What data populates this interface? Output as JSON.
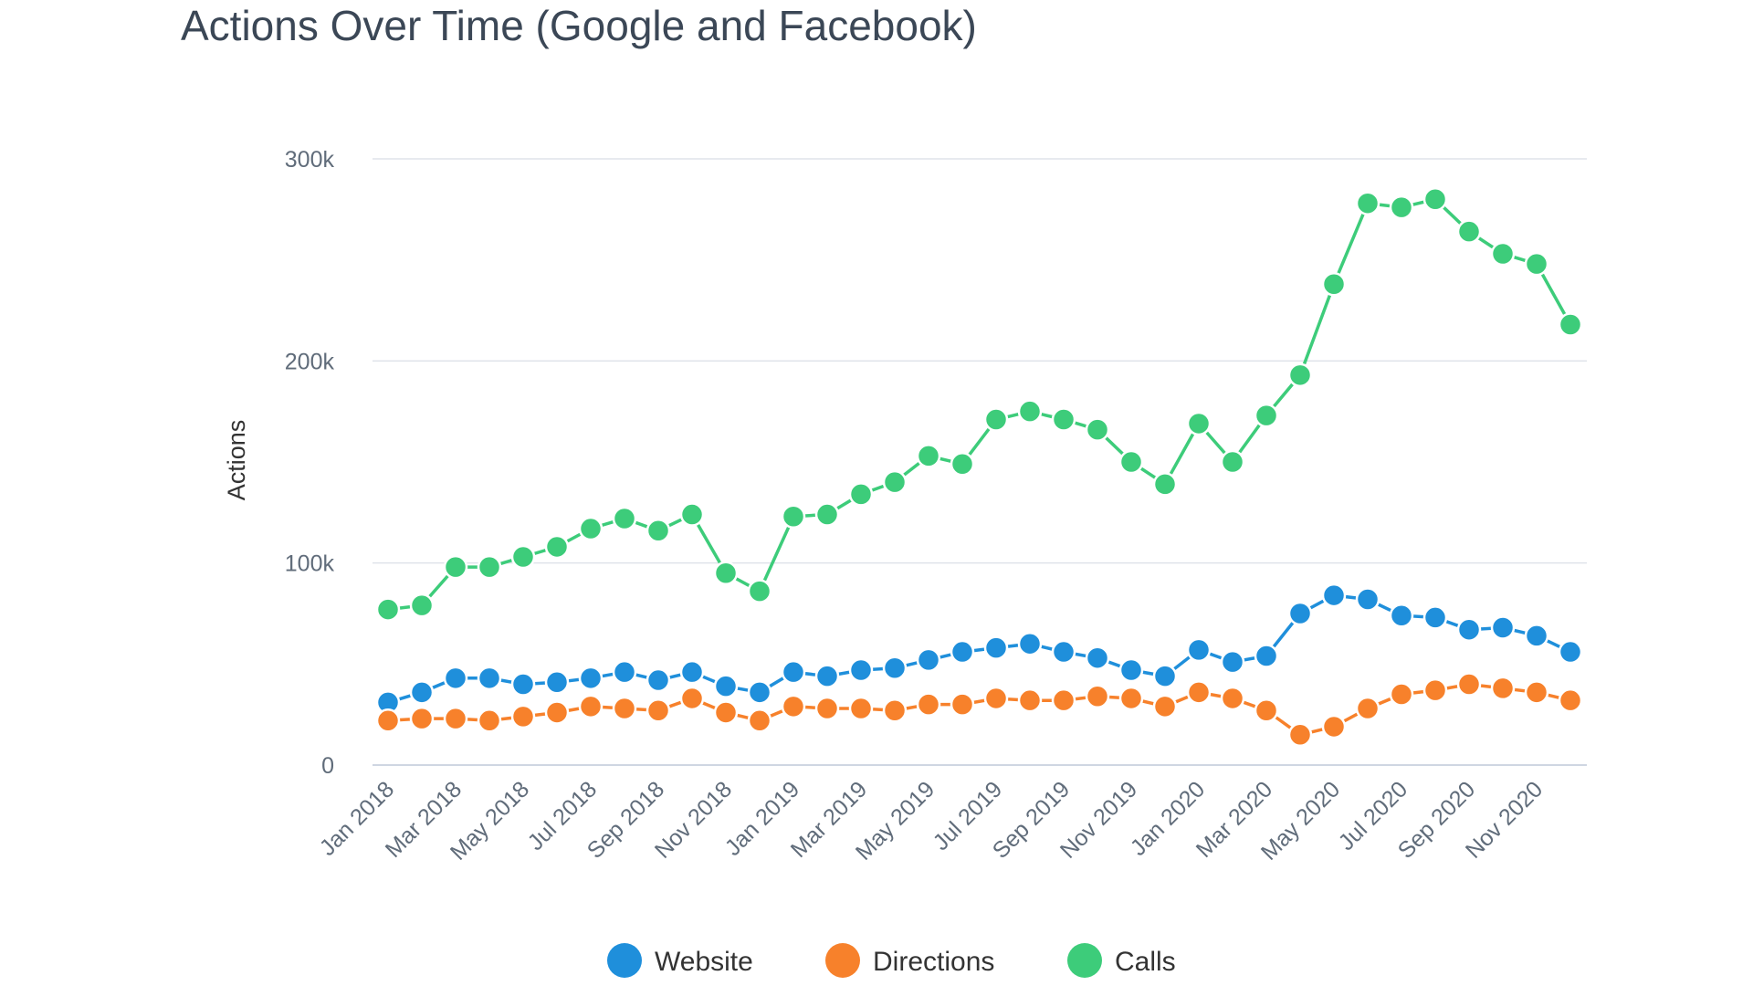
{
  "chart_data": {
    "type": "line",
    "title": "Actions Over Time (Google and Facebook)",
    "xlabel": "",
    "ylabel": "Actions",
    "ylim": [
      0,
      300000
    ],
    "yticks": [
      {
        "value": 0,
        "label": "0"
      },
      {
        "value": 100000,
        "label": "100k"
      },
      {
        "value": 200000,
        "label": "200k"
      },
      {
        "value": 300000,
        "label": "300k"
      }
    ],
    "grid": true,
    "legend_position": "bottom",
    "x": [
      "Jan 2018",
      "Feb 2018",
      "Mar 2018",
      "Apr 2018",
      "May 2018",
      "Jun 2018",
      "Jul 2018",
      "Aug 2018",
      "Sep 2018",
      "Oct 2018",
      "Nov 2018",
      "Dec 2018",
      "Jan 2019",
      "Feb 2019",
      "Mar 2019",
      "Apr 2019",
      "May 2019",
      "Jun 2019",
      "Jul 2019",
      "Aug 2019",
      "Sep 2019",
      "Oct 2019",
      "Nov 2019",
      "Dec 2019",
      "Jan 2020",
      "Feb 2020",
      "Mar 2020",
      "Apr 2020",
      "May 2020",
      "Jun 2020",
      "Jul 2020",
      "Aug 2020",
      "Sep 2020",
      "Oct 2020",
      "Nov 2020",
      "Dec 2020"
    ],
    "x_tick_labels": [
      "Jan 2018",
      "Mar 2018",
      "May 2018",
      "Jul 2018",
      "Sep 2018",
      "Nov 2018",
      "Jan 2019",
      "Mar 2019",
      "May 2019",
      "Jul 2019",
      "Sep 2019",
      "Nov 2019",
      "Jan 2020",
      "Mar 2020",
      "May 2020",
      "Jul 2020",
      "Sep 2020",
      "Nov 2020"
    ],
    "series": [
      {
        "name": "Website",
        "color": "#1f8fdb",
        "values": [
          31000,
          36000,
          43000,
          43000,
          40000,
          41000,
          43000,
          46000,
          42000,
          46000,
          39000,
          36000,
          46000,
          44000,
          47000,
          48000,
          52000,
          56000,
          58000,
          60000,
          56000,
          53000,
          47000,
          44000,
          57000,
          51000,
          54000,
          75000,
          84000,
          82000,
          74000,
          73000,
          67000,
          68000,
          64000,
          56000
        ]
      },
      {
        "name": "Directions",
        "color": "#f7812b",
        "values": [
          22000,
          23000,
          23000,
          22000,
          24000,
          26000,
          29000,
          28000,
          27000,
          33000,
          26000,
          22000,
          29000,
          28000,
          28000,
          27000,
          30000,
          30000,
          33000,
          32000,
          32000,
          34000,
          33000,
          29000,
          36000,
          33000,
          27000,
          15000,
          19000,
          28000,
          35000,
          37000,
          40000,
          38000,
          36000,
          32000
        ]
      },
      {
        "name": "Calls",
        "color": "#3dcc7a",
        "values": [
          77000,
          79000,
          98000,
          98000,
          103000,
          108000,
          117000,
          122000,
          116000,
          124000,
          95000,
          86000,
          123000,
          124000,
          134000,
          140000,
          153000,
          149000,
          171000,
          175000,
          171000,
          166000,
          150000,
          139000,
          169000,
          150000,
          173000,
          193000,
          238000,
          278000,
          276000,
          280000,
          264000,
          253000,
          248000,
          218000
        ]
      }
    ]
  }
}
